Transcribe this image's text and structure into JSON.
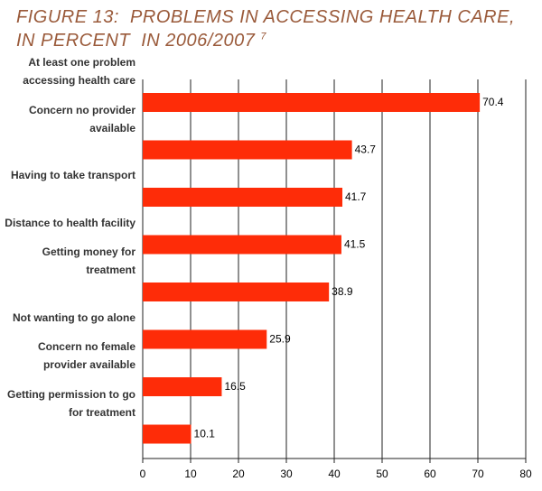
{
  "chart_data": {
    "type": "bar",
    "orientation": "horizontal",
    "title": [
      "FIGURE 13:  PROBLEMS IN ACCESSING HEALTH CARE,",
      "IN PERCENT  IN 2006/2007"
    ],
    "title_note": "7",
    "categories": [
      "At least one problem accessing health care",
      "Concern no provider available",
      "Having to take transport",
      "Distance to health facility",
      "Getting money for treatment",
      "Not wanting to go alone",
      "Concern no female provider available",
      "Getting permission to go for treatment"
    ],
    "values": [
      70.4,
      43.7,
      41.7,
      41.5,
      38.9,
      25.9,
      16.5,
      10.1
    ],
    "color": "#fe2c08",
    "xlim": [
      0,
      80
    ],
    "xticks": [
      0,
      10,
      20,
      30,
      40,
      50,
      60,
      70,
      80
    ],
    "grid": true
  }
}
